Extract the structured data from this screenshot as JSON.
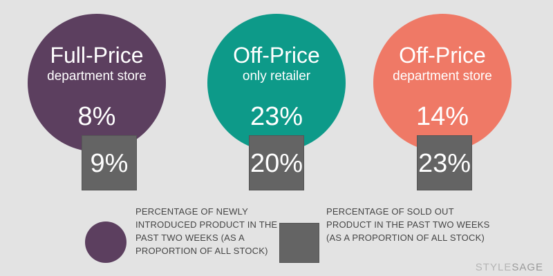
{
  "colors": {
    "full_price_department_store": "#5c3f5f",
    "off_price_only_retailer": "#0d9a89",
    "off_price_department_store": "#ef7966",
    "sold_out_box": "#646464",
    "background": "#e3e3e3"
  },
  "chart_data": {
    "type": "other",
    "categories": [
      {
        "name": "Full-Price",
        "subtitle": "department store",
        "newly_introduced_pct": "8%",
        "sold_out_pct": "9%"
      },
      {
        "name": "Off-Price",
        "subtitle": "only retailer",
        "newly_introduced_pct": "23%",
        "sold_out_pct": "20%"
      },
      {
        "name": "Off-Price",
        "subtitle": "department store",
        "newly_introduced_pct": "14%",
        "sold_out_pct": "23%"
      }
    ],
    "legend": {
      "circle": "PERCENTAGE OF NEWLY INTRODUCED PRODUCT IN THE PAST TWO WEEKS (AS A PROPORTION OF ALL STOCK)",
      "box": "PERCENTAGE OF SOLD OUT PRODUCT IN THE PAST TWO WEEKS (AS A PROPORTION OF ALL STOCK)"
    }
  },
  "brand": {
    "part1": "STYLE",
    "part2": "SAGE"
  }
}
